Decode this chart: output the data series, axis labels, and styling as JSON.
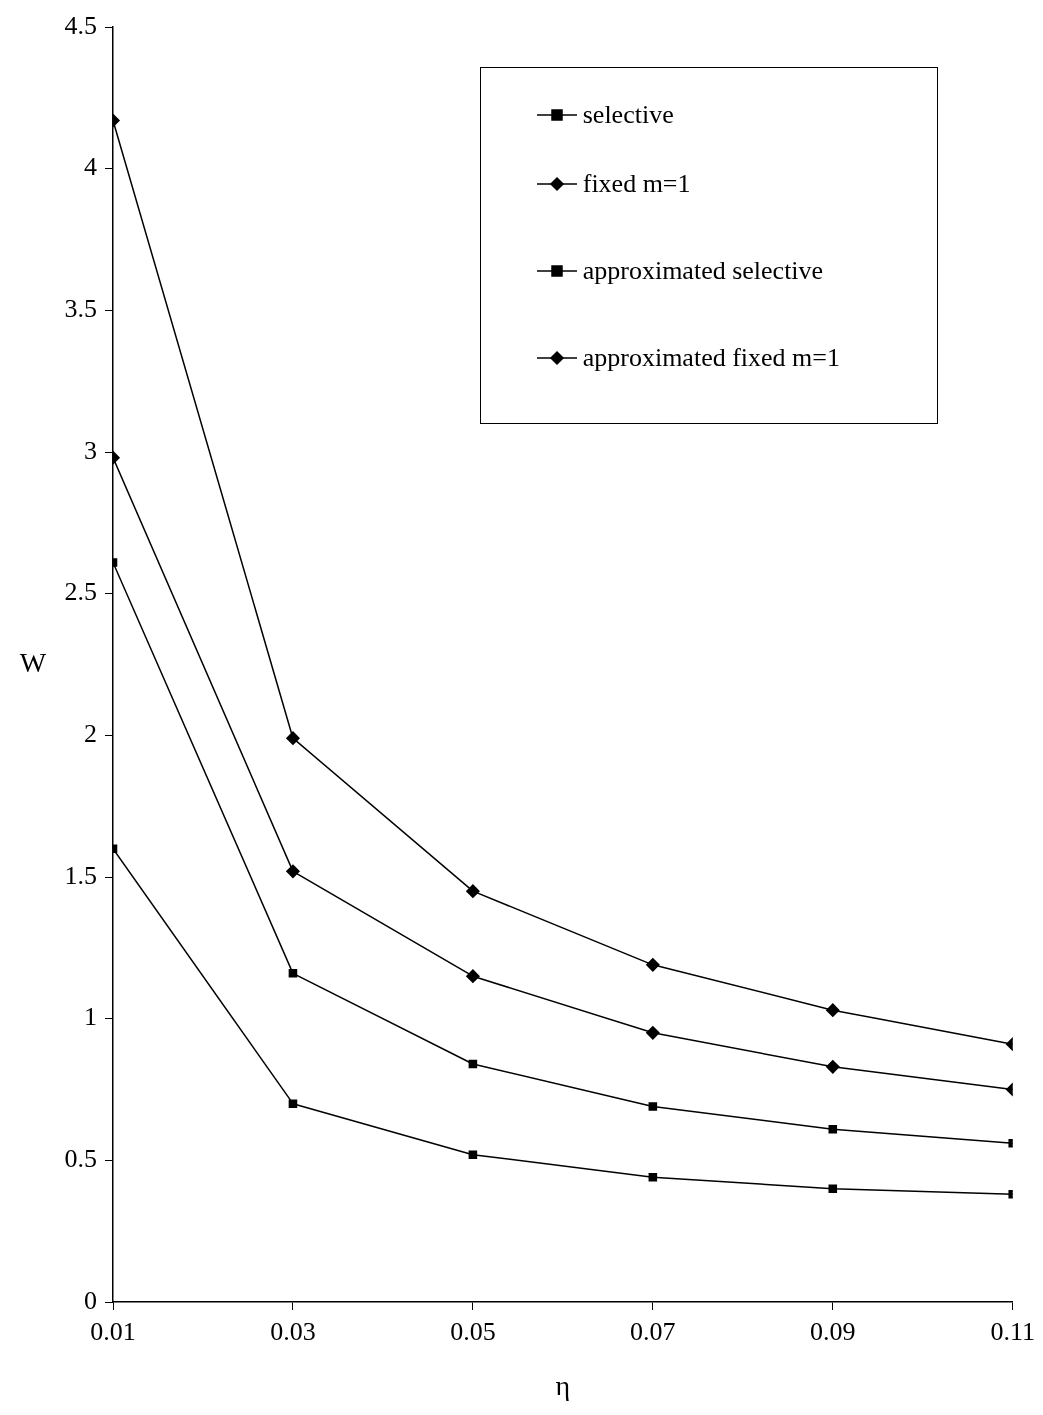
{
  "chart_data": {
    "type": "line",
    "xlabel": "η",
    "ylabel": "W",
    "x": [
      0.01,
      0.03,
      0.05,
      0.07,
      0.09,
      0.11
    ],
    "xlim": [
      0.01,
      0.11
    ],
    "xticks": [
      0.01,
      0.03,
      0.05,
      0.07,
      0.09,
      0.11
    ],
    "ylim": [
      0,
      4.5
    ],
    "yticks": [
      0,
      0.5,
      1,
      1.5,
      2,
      2.5,
      3,
      3.5,
      4,
      4.5
    ],
    "grid": false,
    "legend": "top right",
    "line_style": "solid",
    "series": [
      {
        "name": "selective",
        "color": "#000000",
        "marker": "square",
        "values": [
          2.61,
          1.16,
          0.84,
          0.69,
          0.61,
          0.56
        ]
      },
      {
        "name": "fixed m=1",
        "color": "#000000",
        "marker": "diamond",
        "values": [
          4.17,
          1.99,
          1.45,
          1.19,
          1.03,
          0.91
        ]
      },
      {
        "name": "approximated selective",
        "color": "#000000",
        "marker": "square",
        "values": [
          1.6,
          0.7,
          0.52,
          0.44,
          0.4,
          0.38
        ]
      },
      {
        "name": "approximated fixed m=1",
        "color": "#000000",
        "marker": "diamond",
        "values": [
          2.98,
          1.52,
          1.15,
          0.95,
          0.83,
          0.75
        ]
      }
    ]
  }
}
